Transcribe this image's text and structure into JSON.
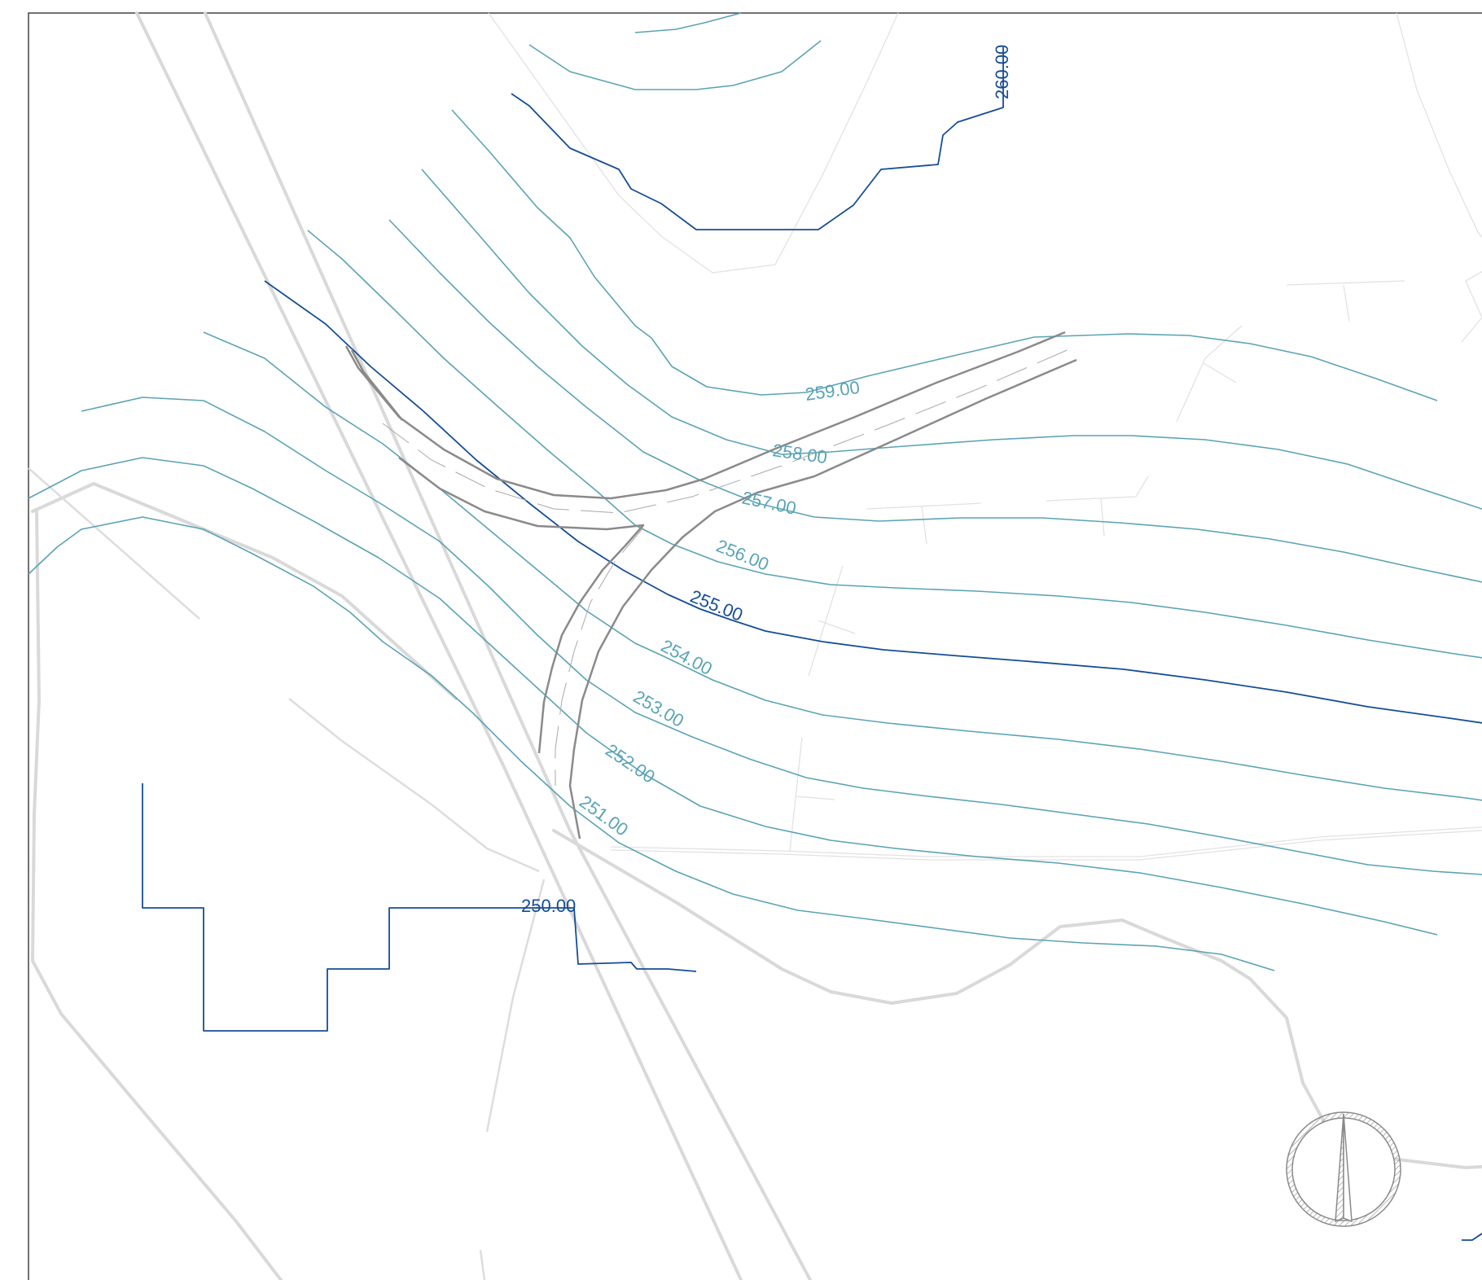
{
  "map": {
    "colors": {
      "contour_minor": "#5aa3b5",
      "contour_major": "#154d96",
      "existing_road": "#d9d9d9",
      "parcel_line": "#e2e2e2",
      "design_road": "#8a8a8a",
      "frame": "#444444"
    },
    "contour_labels": [
      {
        "id": "c260",
        "text": "260.00",
        "kind": "major"
      },
      {
        "id": "c259",
        "text": "259.00",
        "kind": "minor"
      },
      {
        "id": "c258",
        "text": "258.00",
        "kind": "minor"
      },
      {
        "id": "c257",
        "text": "257.00",
        "kind": "minor"
      },
      {
        "id": "c256",
        "text": "256.00",
        "kind": "minor"
      },
      {
        "id": "c255",
        "text": "255.00",
        "kind": "major"
      },
      {
        "id": "c254",
        "text": "254.00",
        "kind": "minor"
      },
      {
        "id": "c253",
        "text": "253.00",
        "kind": "minor"
      },
      {
        "id": "c252",
        "text": "252.00",
        "kind": "minor"
      },
      {
        "id": "c251",
        "text": "251.00",
        "kind": "minor"
      },
      {
        "id": "c250",
        "text": "250.00",
        "kind": "major"
      }
    ],
    "north_arrow": {
      "icon": "north-arrow-icon"
    }
  }
}
